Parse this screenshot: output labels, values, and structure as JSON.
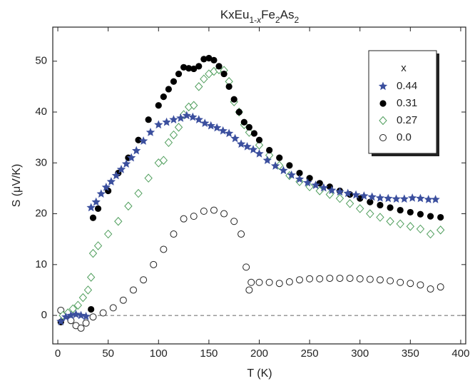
{
  "chart_data": {
    "type": "scatter",
    "title": "KxEu1-xFe2As2",
    "x_label": "T (K)",
    "y_label": "S (μV/K)",
    "xlim": [
      -5,
      405
    ],
    "ylim": [
      -5.6,
      56.7
    ],
    "xticks": [
      0,
      50,
      100,
      150,
      200,
      250,
      300,
      350,
      400
    ],
    "yticks": [
      0,
      10,
      20,
      30,
      40,
      50
    ],
    "reference_line": {
      "y": 0,
      "style": "dashed"
    },
    "legend": {
      "title": "x",
      "position": "top-right"
    },
    "series": [
      {
        "name": "0.44",
        "color": "#3b4f9e",
        "marker": "star",
        "x": [
          3,
          8,
          13,
          18,
          23,
          28,
          33,
          38,
          43,
          48,
          53,
          58,
          63,
          68,
          73,
          78,
          85,
          92,
          100,
          108,
          115,
          122,
          128,
          134,
          140,
          146,
          152,
          158,
          164,
          170,
          176,
          182,
          188,
          194,
          200,
          208,
          216,
          224,
          232,
          240,
          248,
          256,
          264,
          272,
          280,
          288,
          296,
          304,
          312,
          320,
          328,
          336,
          344,
          352,
          360,
          368,
          375
        ],
        "y": [
          -1.2,
          -0.3,
          0,
          0.2,
          0,
          -0.2,
          21.2,
          22.3,
          23.9,
          25.2,
          26.3,
          27.5,
          28.7,
          29.8,
          31,
          32.4,
          34.3,
          36,
          37.5,
          38,
          38.5,
          38.8,
          39.3,
          39,
          38.5,
          37.8,
          37.3,
          36.9,
          36.3,
          35.8,
          34.8,
          33.7,
          33.2,
          32.6,
          31.8,
          30.5,
          29.4,
          28.5,
          27.6,
          26.8,
          26.1,
          25.6,
          25.1,
          24.6,
          24.3,
          24,
          23.7,
          23.5,
          23.3,
          23.1,
          23,
          22.9,
          22.9,
          23.1,
          23,
          22.8,
          22.8
        ]
      },
      {
        "name": "0.31",
        "color": "#000000",
        "marker": "filled-circle",
        "x": [
          3,
          33,
          35,
          40,
          50,
          60,
          70,
          80,
          90,
          100,
          105,
          110,
          115,
          120,
          125,
          130,
          135,
          140,
          145,
          150,
          155,
          160,
          165,
          170,
          175,
          180,
          185,
          190,
          195,
          200,
          210,
          220,
          230,
          240,
          250,
          260,
          270,
          280,
          290,
          300,
          310,
          320,
          330,
          340,
          350,
          360,
          370,
          380
        ],
        "y": [
          -1.3,
          1.2,
          19.2,
          21,
          24.5,
          28,
          31,
          34.5,
          38.5,
          41.3,
          43,
          44.5,
          46,
          47.5,
          48.8,
          48.6,
          48.5,
          49,
          50.4,
          50.6,
          50.2,
          49,
          47.5,
          45,
          42.5,
          40,
          38,
          37,
          35.8,
          34.5,
          32.5,
          31,
          29.5,
          28,
          27,
          26,
          25.3,
          24.5,
          23.8,
          23,
          22.3,
          21.7,
          21.2,
          20.7,
          20.3,
          19.9,
          19.5,
          19.3
        ]
      },
      {
        "name": "0.27",
        "color": "#4f9e5c",
        "marker": "open-diamond",
        "x": [
          5,
          10,
          15,
          20,
          25,
          30,
          33,
          35,
          40,
          50,
          60,
          70,
          80,
          90,
          100,
          105,
          110,
          115,
          120,
          125,
          130,
          135,
          140,
          145,
          150,
          155,
          160,
          165,
          170,
          175,
          180,
          185,
          190,
          200,
          210,
          220,
          230,
          240,
          250,
          260,
          270,
          280,
          290,
          300,
          310,
          320,
          330,
          340,
          350,
          360,
          370,
          380
        ],
        "y": [
          0,
          0.5,
          1.3,
          2,
          3.5,
          5,
          7.5,
          12.2,
          13.7,
          16,
          18.5,
          21.5,
          24,
          27,
          30,
          30.5,
          34,
          35.5,
          37,
          39.5,
          41,
          41.3,
          45,
          46.5,
          47.5,
          48,
          48.3,
          48.2,
          46,
          42,
          40,
          37.5,
          36,
          33.5,
          31.5,
          29.5,
          27.5,
          26.3,
          25.3,
          24.5,
          23.8,
          23,
          22,
          21,
          20,
          19.3,
          18.5,
          18,
          17.5,
          17,
          16,
          16.8
        ]
      },
      {
        "name": "0.0",
        "color": "#222222",
        "marker": "open-circle",
        "x": [
          3,
          8,
          13,
          18,
          23,
          28,
          35,
          45,
          55,
          65,
          75,
          85,
          95,
          105,
          115,
          125,
          135,
          145,
          155,
          165,
          175,
          182,
          187,
          190,
          192,
          200,
          210,
          220,
          230,
          240,
          250,
          260,
          270,
          280,
          290,
          300,
          310,
          320,
          330,
          340,
          350,
          360,
          370,
          380
        ],
        "y": [
          1,
          0,
          -1,
          -2,
          -2.5,
          -1.5,
          -0.3,
          0.5,
          1.5,
          3,
          5,
          7,
          10,
          13,
          16,
          19,
          19.5,
          20.5,
          20.7,
          20,
          18.5,
          16,
          9.5,
          5,
          6.5,
          6.5,
          6.5,
          6.3,
          6.6,
          7,
          7.2,
          7.2,
          7.3,
          7.3,
          7.3,
          7.2,
          7.1,
          7,
          6.8,
          6.5,
          6.3,
          6,
          5.2,
          5.6
        ]
      }
    ]
  }
}
